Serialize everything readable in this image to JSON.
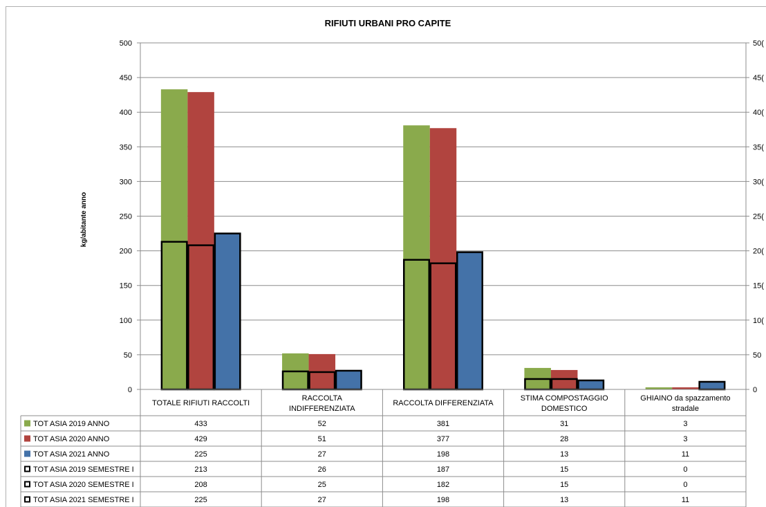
{
  "chart_data": {
    "type": "bar",
    "title": "RIFIUTI URBANI PRO CAPITE",
    "ylabel": "kg/abitante anno",
    "xlabel": "",
    "ylim": [
      0,
      500
    ],
    "yticks": [
      0,
      50,
      100,
      150,
      200,
      250,
      300,
      350,
      400,
      450,
      500
    ],
    "secondary_yticks": [
      "0",
      "50",
      "10(",
      "15(",
      "20(",
      "25(",
      "30(",
      "35(",
      "40(",
      "45(",
      "50("
    ],
    "grid": true,
    "legend": "data-table",
    "categories": [
      [
        "TOTALE RIFIUTI RACCOLTI"
      ],
      [
        "RACCOLTA",
        "INDIFFERENZIATA"
      ],
      [
        "RACCOLTA DIFFERENZIATA"
      ],
      [
        "STIMA COMPOSTAGGIO",
        "DOMESTICO"
      ],
      [
        "GHIAINO da spazzamento",
        "stradale"
      ]
    ],
    "series": [
      {
        "name": "TOT ASIA 2019 ANNO",
        "color": "#8aaa4c",
        "style": "filled",
        "values": [
          433,
          52,
          381,
          31,
          3
        ]
      },
      {
        "name": "TOT ASIA 2020 ANNO",
        "color": "#b1443f",
        "style": "filled",
        "values": [
          429,
          51,
          377,
          28,
          3
        ]
      },
      {
        "name": "TOT ASIA 2021 ANNO",
        "color": "#4472a8",
        "style": "filled",
        "values": [
          225,
          27,
          198,
          13,
          11
        ]
      },
      {
        "name": "TOT ASIA 2019 SEMESTRE I",
        "color": "#000000",
        "style": "outline",
        "values": [
          213,
          26,
          187,
          15,
          0
        ]
      },
      {
        "name": "TOT ASIA 2020 SEMESTRE I",
        "color": "#000000",
        "style": "outline",
        "values": [
          208,
          25,
          182,
          15,
          0
        ]
      },
      {
        "name": "TOT ASIA 2021 SEMESTRE I",
        "color": "#000000",
        "style": "outline",
        "values": [
          225,
          27,
          198,
          13,
          11
        ]
      }
    ],
    "table_values": [
      [
        "433",
        "52",
        "381",
        "31",
        "3"
      ],
      [
        "429",
        "51",
        "377",
        "28",
        "3"
      ],
      [
        "225",
        "27",
        "198",
        "13",
        "11"
      ],
      [
        "213",
        "26",
        "187",
        "15",
        "0"
      ],
      [
        "208",
        "25",
        "182",
        "15",
        "0"
      ],
      [
        "225",
        "27",
        "198",
        "13",
        "11"
      ]
    ]
  }
}
